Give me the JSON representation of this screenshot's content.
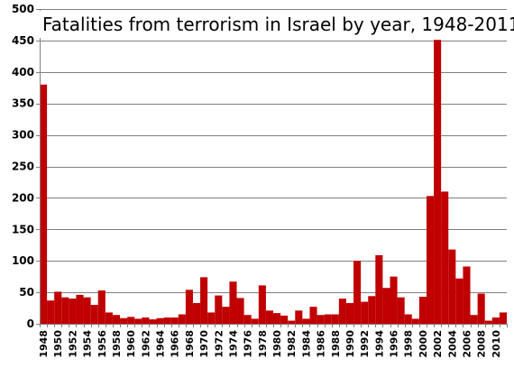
{
  "chart_data": {
    "type": "bar",
    "title": "Fatalities from terrorism in Israel by year, 1948-2011",
    "xlabel": "",
    "ylabel": "",
    "ylim": [
      0,
      500
    ],
    "yticks": [
      0,
      50,
      100,
      150,
      200,
      250,
      300,
      350,
      400,
      450,
      500
    ],
    "grid": true,
    "bar_color": "#c00000",
    "categories": [
      1948,
      1949,
      1950,
      1951,
      1952,
      1953,
      1954,
      1955,
      1956,
      1957,
      1958,
      1959,
      1960,
      1961,
      1962,
      1963,
      1964,
      1965,
      1966,
      1967,
      1968,
      1969,
      1970,
      1971,
      1972,
      1973,
      1974,
      1975,
      1976,
      1977,
      1978,
      1979,
      1980,
      1981,
      1982,
      1983,
      1984,
      1985,
      1986,
      1987,
      1988,
      1989,
      1990,
      1991,
      1992,
      1993,
      1994,
      1995,
      1996,
      1997,
      1998,
      1999,
      2000,
      2001,
      2002,
      2003,
      2004,
      2005,
      2006,
      2007,
      2008,
      2009,
      2010,
      2011
    ],
    "xtick_labels": [
      "1948",
      "1950",
      "1952",
      "1954",
      "1956",
      "1958",
      "1960",
      "1962",
      "1964",
      "1966",
      "1968",
      "1970",
      "1972",
      "1974",
      "1976",
      "1978",
      "1980",
      "1982",
      "1984",
      "1986",
      "1988",
      "1990",
      "1992",
      "1994",
      "1996",
      "1998",
      "2000",
      "2002",
      "2004",
      "2006",
      "2008",
      "2010"
    ],
    "values": [
      380,
      37,
      51,
      42,
      40,
      46,
      42,
      30,
      53,
      18,
      14,
      9,
      11,
      8,
      10,
      7,
      9,
      10,
      10,
      15,
      54,
      33,
      74,
      18,
      45,
      27,
      67,
      41,
      14,
      8,
      61,
      21,
      17,
      13,
      5,
      21,
      8,
      27,
      14,
      15,
      15,
      40,
      33,
      100,
      35,
      44,
      109,
      57,
      75,
      42,
      15,
      8,
      43,
      203,
      451,
      210,
      118,
      72,
      91,
      14,
      48,
      5,
      10,
      18
    ]
  }
}
